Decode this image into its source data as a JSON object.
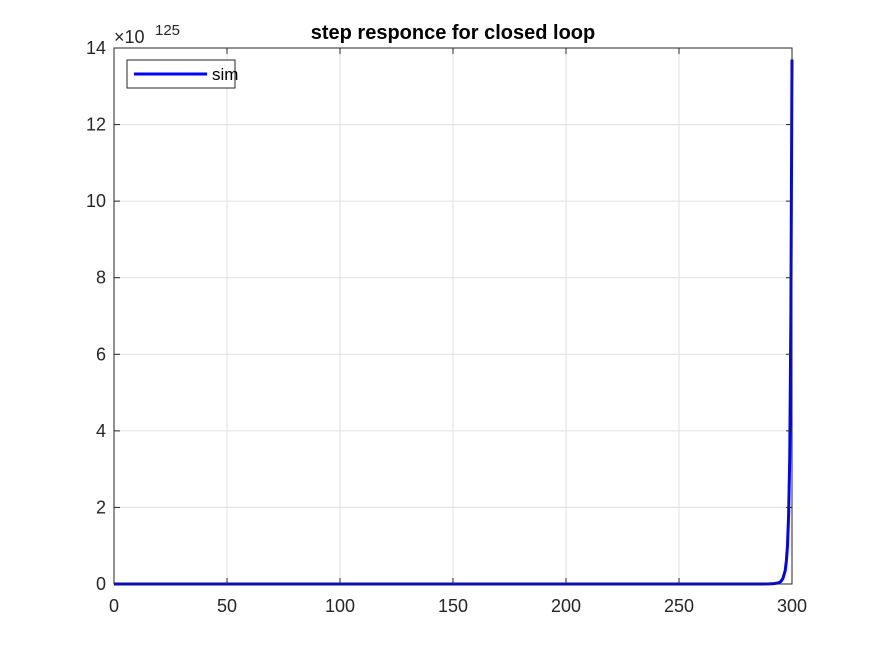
{
  "chart_data": {
    "type": "line",
    "title": "step responce for closed loop",
    "xlabel": "",
    "ylabel": "",
    "xlim": [
      0,
      300
    ],
    "ylim": [
      0,
      14
    ],
    "y_exponent_prefix": "×10",
    "y_exponent": "125",
    "x_ticks": [
      0,
      50,
      100,
      150,
      200,
      250,
      300
    ],
    "y_ticks": [
      0,
      2,
      4,
      6,
      8,
      10,
      12,
      14
    ],
    "grid": true,
    "legend_position": "top-left",
    "series": [
      {
        "name": "sim",
        "color": "#0000ff",
        "x": [
          0,
          100,
          200,
          280,
          290,
          292,
          294,
          295,
          296,
          297,
          297.5,
          298,
          298.5,
          299,
          299.5,
          300
        ],
        "y": [
          0,
          0,
          0,
          0,
          0.002,
          0.01,
          0.03,
          0.06,
          0.15,
          0.35,
          0.6,
          1.0,
          1.8,
          3.3,
          7.0,
          13.7
        ]
      }
    ]
  }
}
